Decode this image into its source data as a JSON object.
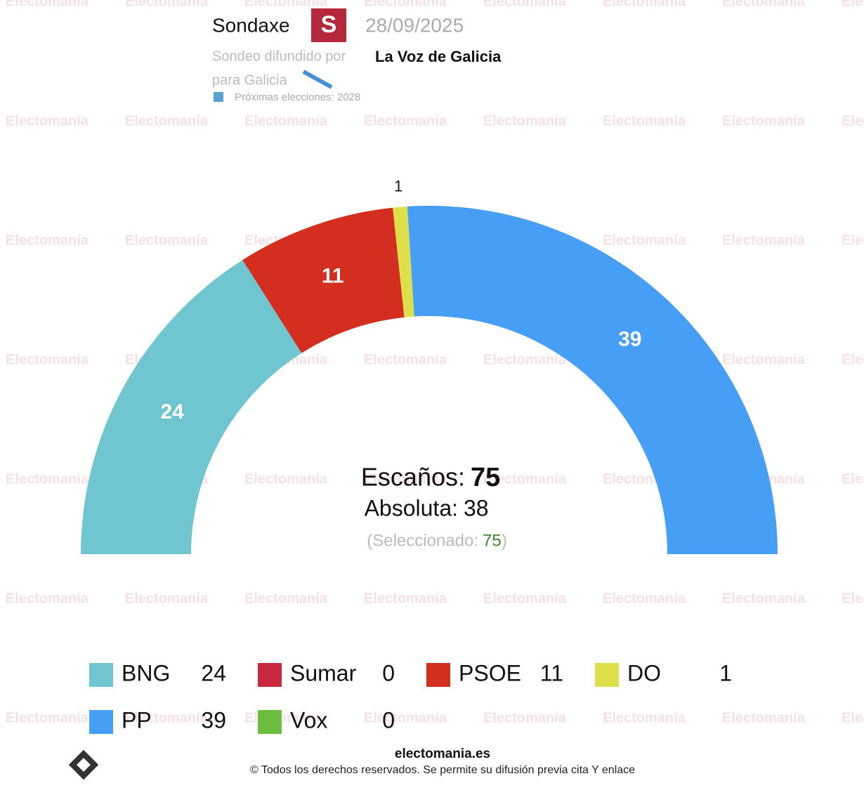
{
  "chart_data": {
    "type": "parliament",
    "pollster": "Sondaxe",
    "date": "28/09/2025",
    "published_by_label": "Sondeo difundido por",
    "publisher": "La Voz de Galicia",
    "region": "para Galicia",
    "next_election": "Próximas elecciones: 2028",
    "categories": [
      "BNG",
      "Sumar",
      "PSOE",
      "DO",
      "PP",
      "Vox"
    ],
    "values": [
      24,
      0,
      11,
      1,
      39,
      0
    ],
    "colors": [
      "#6fc6d1",
      "#c9283e",
      "#d42e20",
      "#dde04a",
      "#479ff5",
      "#6cbd3f"
    ],
    "arc_order": [
      0,
      1,
      2,
      3,
      4,
      5
    ],
    "seats_label": "Escaños:",
    "seats_total": 75,
    "majority_label": "Absoluta:",
    "majority": 38,
    "selected_label": "(Seleccionado:",
    "selected": 75,
    "selected_close": ")",
    "footer_site": "electomania.es",
    "footer_copyright": "© Todos los derechos reservados. Se permite su difusión previa cita Y enlace",
    "watermark": "Electomanía"
  }
}
